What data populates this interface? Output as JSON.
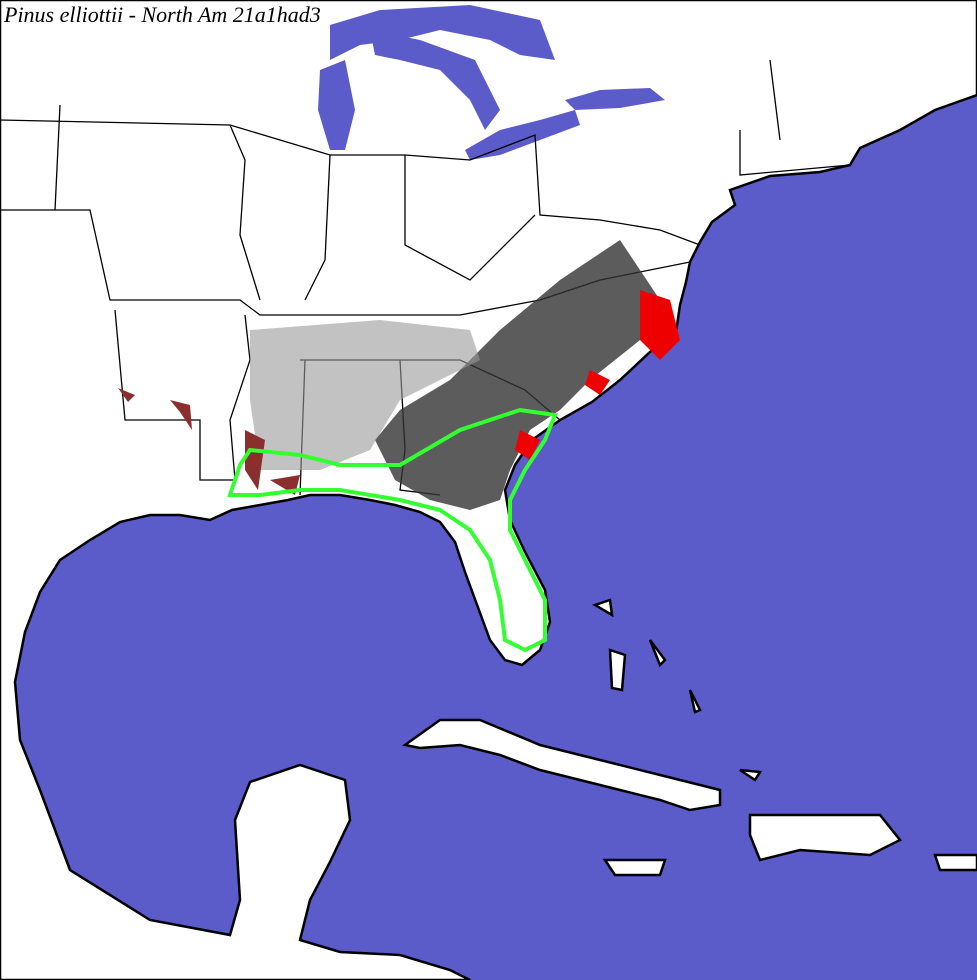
{
  "title": "Pinus elliottii - North Am 21a1had3"
}
